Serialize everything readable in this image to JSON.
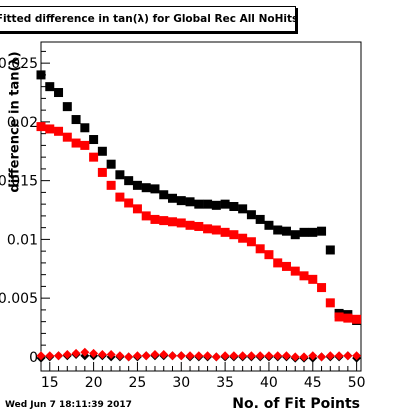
{
  "chart_data": {
    "type": "scatter",
    "title": "Fitted difference in tan(λ) for Global Rec All NoHits",
    "ylabel": "difference in tan(λ)",
    "xlabel": "No. of Fit Points",
    "xlim": [
      14,
      50.5
    ],
    "ylim": [
      -0.0012,
      0.0268
    ],
    "x_ticks": [
      15,
      20,
      25,
      30,
      35,
      40,
      45,
      50
    ],
    "x_tick_labels": [
      "15",
      "20",
      "25",
      "30",
      "35",
      "40",
      "45",
      "50"
    ],
    "y_ticks": [
      0,
      0.005,
      0.01,
      0.015,
      0.02,
      0.025
    ],
    "y_tick_labels": [
      "0",
      "0.005",
      "0.01",
      "0.015",
      "0.02",
      "0.025"
    ],
    "series": [
      {
        "color": "#000000",
        "marker": "square",
        "x": [
          14,
          15,
          16,
          17,
          18,
          19,
          20,
          21,
          22,
          23,
          24,
          25,
          26,
          27,
          28,
          29,
          30,
          31,
          32,
          33,
          34,
          35,
          36,
          37,
          38,
          39,
          40,
          41,
          42,
          43,
          44,
          45,
          46,
          47,
          48,
          49,
          50
        ],
        "values": [
          0.024,
          0.023,
          0.0225,
          0.0213,
          0.0202,
          0.0195,
          0.0185,
          0.0175,
          0.0164,
          0.0155,
          0.015,
          0.0146,
          0.0144,
          0.0143,
          0.0138,
          0.0135,
          0.0133,
          0.0132,
          0.013,
          0.013,
          0.0129,
          0.013,
          0.0128,
          0.0126,
          0.0121,
          0.0117,
          0.0112,
          0.0108,
          0.0107,
          0.0104,
          0.0106,
          0.0106,
          0.0107,
          0.0091,
          0.0037,
          0.0036,
          0.0031
        ]
      },
      {
        "color": "#ff0000",
        "marker": "square",
        "x": [
          14,
          15,
          16,
          17,
          18,
          19,
          20,
          21,
          22,
          23,
          24,
          25,
          26,
          27,
          28,
          29,
          30,
          31,
          32,
          33,
          34,
          35,
          36,
          37,
          38,
          39,
          40,
          41,
          42,
          43,
          44,
          45,
          46,
          47,
          48,
          49,
          50
        ],
        "values": [
          0.0196,
          0.0194,
          0.0192,
          0.0187,
          0.0182,
          0.018,
          0.017,
          0.0157,
          0.0146,
          0.0136,
          0.0131,
          0.0126,
          0.012,
          0.0117,
          0.0116,
          0.0115,
          0.0114,
          0.0112,
          0.0111,
          0.0109,
          0.0108,
          0.0106,
          0.0104,
          0.0101,
          0.0098,
          0.0092,
          0.0087,
          0.008,
          0.0077,
          0.0073,
          0.0069,
          0.0066,
          0.0059,
          0.0046,
          0.0034,
          0.0033,
          0.0032
        ]
      },
      {
        "color": "#000000",
        "marker": "diamond",
        "x": [
          14,
          15,
          16,
          17,
          18,
          19,
          20,
          21,
          22,
          23,
          24,
          25,
          26,
          27,
          28,
          29,
          30,
          31,
          32,
          33,
          34,
          35,
          36,
          37,
          38,
          39,
          40,
          41,
          42,
          43,
          44,
          45,
          46,
          47,
          48,
          49,
          50
        ],
        "values": [
          -0.0001,
          0.0,
          0.0001,
          0.0001,
          0.0002,
          0.0001,
          0.0001,
          0.0001,
          0.0,
          0.0,
          0.0,
          0.0,
          0.0001,
          0.0001,
          0.0001,
          0.0001,
          0.0001,
          0.0,
          0.0,
          0.0,
          0.0,
          0.0,
          0.0,
          0.0,
          0.0,
          0.0,
          0.0,
          0.0,
          0.0,
          -0.0001,
          -0.0001,
          -0.0001,
          0.0,
          0.0,
          0.0,
          0.0001,
          -0.0001
        ]
      },
      {
        "color": "#ff0000",
        "marker": "diamond",
        "x": [
          14,
          15,
          16,
          17,
          18,
          19,
          20,
          21,
          22,
          23,
          24,
          25,
          26,
          27,
          28,
          29,
          30,
          31,
          32,
          33,
          34,
          35,
          36,
          37,
          38,
          39,
          40,
          41,
          42,
          43,
          44,
          45,
          46,
          47,
          48,
          49,
          50
        ],
        "values": [
          0.0001,
          0.0001,
          0.0001,
          0.0002,
          0.0003,
          0.0004,
          0.0003,
          0.0002,
          0.0002,
          0.0001,
          0.0,
          0.0001,
          0.0001,
          0.0002,
          0.0002,
          0.0001,
          0.0001,
          0.0001,
          0.0001,
          0.0001,
          0.0,
          0.0001,
          0.0001,
          0.0001,
          0.0001,
          0.0001,
          0.0001,
          0.0001,
          0.0001,
          0.0,
          0.0,
          0.0001,
          0.0,
          0.0001,
          0.0001,
          0.0001,
          0.0001
        ]
      }
    ]
  },
  "timestamp": "Wed Jun  7 18:11:39 2017"
}
